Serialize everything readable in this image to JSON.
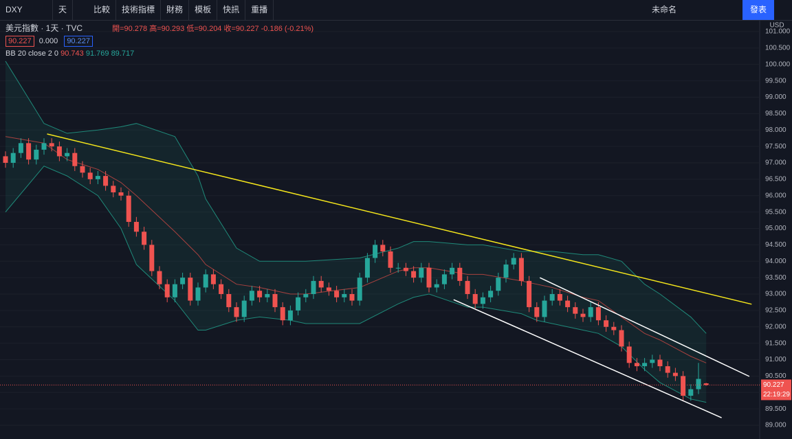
{
  "toolbar": {
    "symbol": "DXY",
    "interval": "天",
    "compare": "比較",
    "indicators": "技術指標",
    "financials": "財務",
    "templates": "模板",
    "alert": "快訊",
    "replay": "重播",
    "layout_name": "未命名",
    "publish": "發表"
  },
  "legend": {
    "title": "美元指數 · 1天 · TVC",
    "open": "開=90.278",
    "high": "高=90.293",
    "low": "低=90.204",
    "close": "收=90.227",
    "change": "-0.186 (-0.21%)",
    "bid": "90.227",
    "spread": "0.000",
    "ask": "90.227",
    "bb_name": "BB 20 close 2 0",
    "bb_mid": "90.743",
    "bb_upper": "91.769",
    "bb_lower": "89.717"
  },
  "chart_data": {
    "type": "candlestick",
    "color_up": "#26a69a",
    "color_down": "#ef5350",
    "open": [
      97.2,
      97.0,
      97.3,
      97.6,
      97.1,
      97.4,
      97.6,
      97.5,
      97.2,
      97.3,
      96.9,
      96.7,
      96.5,
      96.6,
      96.3,
      96.1,
      96.0,
      95.2,
      94.9,
      94.5,
      93.7,
      93.3,
      92.9,
      93.3,
      93.5,
      92.8,
      93.2,
      93.6,
      93.3,
      93.0,
      92.6,
      92.3,
      92.8,
      93.1,
      92.9,
      93.0,
      92.6,
      92.2,
      92.5,
      92.9,
      93.0,
      93.4,
      93.2,
      93.1,
      92.9,
      93.0,
      92.8,
      93.5,
      94.1,
      94.5,
      94.3,
      93.8,
      93.8,
      93.7,
      93.5,
      93.8,
      93.2,
      93.3,
      93.6,
      93.8,
      93.4,
      93.0,
      92.7,
      92.9,
      93.1,
      93.5,
      93.9,
      94.1,
      93.4,
      92.6,
      92.3,
      92.8,
      93.0,
      92.8,
      92.6,
      92.4,
      92.3,
      92.6,
      92.2,
      92.0,
      91.9,
      91.4,
      90.9,
      90.8,
      90.9,
      91.0,
      90.8,
      90.6,
      90.5,
      89.9,
      90.1,
      90.278
    ],
    "high": [
      97.35,
      97.45,
      97.75,
      97.75,
      97.55,
      97.75,
      97.75,
      97.65,
      97.45,
      97.45,
      97.05,
      96.85,
      96.75,
      96.75,
      96.45,
      96.25,
      96.15,
      95.35,
      95.05,
      94.65,
      93.85,
      93.45,
      93.45,
      93.65,
      93.65,
      93.35,
      93.75,
      93.75,
      93.45,
      93.15,
      92.75,
      92.95,
      93.25,
      93.25,
      93.15,
      93.15,
      92.75,
      92.65,
      93.05,
      93.15,
      93.55,
      93.55,
      93.35,
      93.25,
      93.15,
      93.15,
      93.65,
      94.25,
      94.65,
      94.65,
      94.45,
      93.95,
      93.95,
      93.85,
      93.95,
      93.95,
      93.45,
      93.75,
      93.95,
      93.95,
      93.55,
      93.15,
      93.05,
      93.25,
      93.65,
      94.05,
      94.25,
      94.25,
      93.55,
      92.75,
      92.95,
      93.15,
      93.15,
      92.95,
      92.75,
      92.55,
      92.75,
      92.75,
      92.35,
      92.15,
      92.05,
      91.55,
      91.05,
      91.05,
      91.15,
      91.15,
      90.95,
      90.75,
      90.65,
      90.25,
      90.9,
      90.293
    ],
    "low": [
      96.85,
      96.85,
      97.15,
      96.95,
      96.95,
      97.25,
      97.35,
      97.05,
      97.05,
      96.75,
      96.55,
      96.35,
      96.35,
      96.15,
      95.95,
      95.85,
      95.05,
      94.75,
      94.35,
      93.55,
      93.15,
      92.75,
      92.75,
      93.15,
      92.65,
      92.65,
      93.05,
      93.15,
      92.85,
      92.45,
      92.15,
      92.15,
      92.65,
      92.75,
      92.75,
      92.45,
      92.05,
      92.05,
      92.35,
      92.75,
      92.85,
      93.05,
      92.95,
      92.75,
      92.75,
      92.65,
      92.65,
      93.35,
      93.95,
      94.15,
      93.65,
      93.65,
      93.55,
      93.35,
      93.35,
      93.05,
      93.05,
      93.15,
      93.45,
      93.25,
      92.85,
      92.55,
      92.55,
      92.75,
      92.95,
      93.35,
      93.75,
      93.25,
      92.45,
      92.15,
      92.15,
      92.65,
      92.65,
      92.45,
      92.25,
      92.15,
      92.15,
      92.05,
      91.85,
      91.75,
      91.25,
      90.75,
      90.65,
      90.65,
      90.75,
      90.65,
      90.45,
      90.35,
      89.75,
      89.75,
      89.95,
      90.204
    ],
    "close": [
      97.0,
      97.3,
      97.6,
      97.1,
      97.4,
      97.6,
      97.5,
      97.2,
      97.3,
      96.9,
      96.7,
      96.5,
      96.6,
      96.3,
      96.1,
      96.0,
      95.2,
      94.9,
      94.5,
      93.7,
      93.3,
      92.9,
      93.3,
      93.5,
      92.8,
      93.2,
      93.6,
      93.3,
      93.0,
      92.6,
      92.3,
      92.8,
      93.1,
      92.9,
      93.0,
      92.6,
      92.2,
      92.5,
      92.9,
      93.0,
      93.4,
      93.2,
      93.1,
      92.9,
      93.0,
      92.8,
      93.5,
      94.1,
      94.5,
      94.3,
      93.8,
      93.8,
      93.7,
      93.5,
      93.8,
      93.2,
      93.3,
      93.6,
      93.8,
      93.4,
      93.0,
      92.7,
      92.9,
      93.1,
      93.5,
      93.9,
      94.1,
      93.4,
      92.6,
      92.3,
      92.8,
      93.0,
      92.8,
      92.6,
      92.4,
      92.3,
      92.6,
      92.2,
      92.0,
      91.9,
      91.4,
      90.9,
      90.8,
      90.9,
      91.0,
      90.8,
      90.6,
      90.5,
      89.9,
      90.1,
      90.413,
      90.227
    ],
    "ylim": [
      88.77,
      101.335
    ],
    "yticks": [
      {
        "value": 89,
        "label": "89.000"
      },
      {
        "value": 89.5,
        "label": "89.500"
      },
      {
        "value": 90,
        "label": "90.000"
      },
      {
        "value": 90.5,
        "label": "90.500"
      },
      {
        "value": 91,
        "label": "91.000"
      },
      {
        "value": 91.5,
        "label": "91.500"
      },
      {
        "value": 92,
        "label": "92.000"
      },
      {
        "value": 92.5,
        "label": "92.500"
      },
      {
        "value": 93,
        "label": "93.000"
      },
      {
        "value": 93.5,
        "label": "93.500"
      },
      {
        "value": 94,
        "label": "94.000"
      },
      {
        "value": 94.5,
        "label": "94.500"
      },
      {
        "value": 95,
        "label": "95.000"
      },
      {
        "value": 95.5,
        "label": "95.500"
      },
      {
        "value": 96,
        "label": "96.000"
      },
      {
        "value": 96.5,
        "label": "96.500"
      },
      {
        "value": 97,
        "label": "97.000"
      },
      {
        "value": 97.5,
        "label": "97.500"
      },
      {
        "value": 98,
        "label": "98.000"
      },
      {
        "value": 98.5,
        "label": "98.500"
      },
      {
        "value": 99,
        "label": "99.000"
      },
      {
        "value": 99.5,
        "label": "99.500"
      },
      {
        "value": 100,
        "label": "100.000"
      },
      {
        "value": 100.5,
        "label": "100.500"
      },
      {
        "value": 101,
        "label": "101.000"
      }
    ],
    "axis_label": "USD",
    "price_tag": "90.227",
    "countdown": "22:19:29",
    "grid": true,
    "bollinger": {
      "color_band": "#1f8a7a",
      "color_mid": "#a8413f",
      "x": [
        0,
        5,
        8,
        12,
        15,
        17,
        22,
        25,
        26,
        30,
        33,
        37,
        39,
        46,
        51,
        53,
        55,
        60,
        62,
        67,
        69,
        71,
        75,
        77,
        80,
        83,
        85,
        89,
        91
      ],
      "upper": [
        100.1,
        98.2,
        97.9,
        98.0,
        98.1,
        98.2,
        97.8,
        96.6,
        95.9,
        94.4,
        94.0,
        94.0,
        94.0,
        94.1,
        94.4,
        94.6,
        94.6,
        94.5,
        94.5,
        94.3,
        94.3,
        94.3,
        94.2,
        94.2,
        94.0,
        93.3,
        93.0,
        92.3,
        91.8
      ],
      "middle": [
        97.8,
        97.6,
        97.1,
        96.8,
        96.4,
        96.0,
        94.9,
        94.2,
        93.9,
        93.3,
        93.2,
        93.0,
        93.0,
        93.2,
        93.7,
        93.8,
        93.8,
        93.6,
        93.6,
        93.4,
        93.3,
        93.2,
        92.9,
        92.8,
        92.3,
        91.8,
        91.6,
        91.1,
        90.9
      ],
      "lower": [
        95.5,
        96.9,
        96.6,
        96.0,
        95.0,
        93.9,
        92.8,
        91.9,
        91.9,
        92.2,
        92.3,
        92.2,
        92.1,
        92.1,
        92.7,
        92.9,
        93.0,
        92.6,
        92.6,
        92.4,
        92.2,
        92.1,
        91.9,
        91.8,
        91.4,
        90.7,
        90.3,
        89.8,
        89.7
      ]
    },
    "trendlines": [
      {
        "color": "#f5e61b",
        "start": [
          5.4,
          97.88
        ],
        "end": [
          96.9,
          92.69
        ]
      },
      {
        "color": "#ffffff",
        "start": [
          58.2,
          92.83
        ],
        "end": [
          93.0,
          89.23
        ]
      },
      {
        "color": "#ffffff",
        "start": [
          69.4,
          93.5
        ],
        "end": [
          96.6,
          90.49
        ]
      }
    ]
  }
}
